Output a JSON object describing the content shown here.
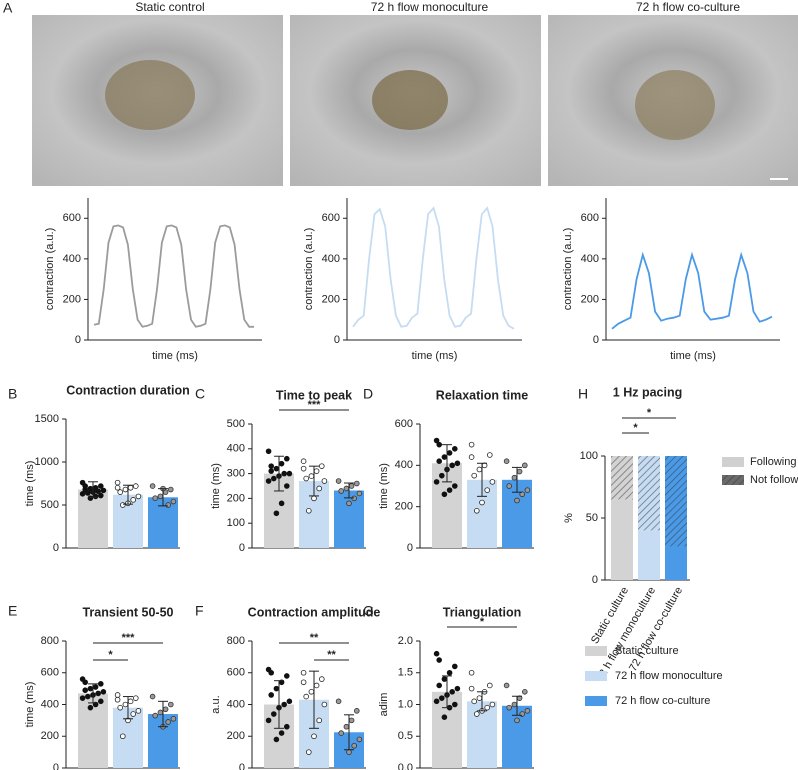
{
  "chart_data": [
    {
      "type": "trace",
      "panel": "A",
      "title": "Static control",
      "ylabel": "contraction (a.u.)",
      "xlabel": "time (ms)",
      "color": "#9b9b9b",
      "ylim": [
        0,
        700
      ],
      "yticks": [
        0,
        200,
        400,
        600
      ],
      "values": [
        75,
        80,
        250,
        480,
        560,
        565,
        555,
        470,
        250,
        100,
        65,
        70,
        80,
        250,
        480,
        560,
        565,
        555,
        470,
        250,
        100,
        65,
        70,
        80,
        250,
        480,
        560,
        565,
        555,
        470,
        250,
        100,
        65,
        65
      ]
    },
    {
      "type": "trace",
      "title": "72 h flow monoculture",
      "ylabel": "contraction (a.u.)",
      "xlabel": "time (ms)",
      "color": "#c6dcf2",
      "ylim": [
        0,
        700
      ],
      "yticks": [
        0,
        200,
        400,
        600
      ],
      "values": [
        65,
        100,
        120,
        400,
        620,
        645,
        560,
        300,
        120,
        65,
        70,
        110,
        130,
        400,
        620,
        650,
        560,
        300,
        120,
        65,
        70,
        110,
        130,
        400,
        620,
        650,
        560,
        300,
        120,
        70,
        55
      ]
    },
    {
      "type": "trace",
      "title": "72 h flow co-culture",
      "ylabel": "contraction (a.u.)",
      "xlabel": "time (ms)",
      "color": "#4a9ae8",
      "ylim": [
        0,
        700
      ],
      "yticks": [
        0,
        200,
        400,
        600
      ],
      "values": [
        55,
        80,
        95,
        110,
        300,
        420,
        330,
        140,
        95,
        105,
        110,
        120,
        300,
        420,
        330,
        140,
        100,
        105,
        110,
        120,
        300,
        420,
        330,
        140,
        90,
        100,
        115
      ]
    },
    {
      "type": "dotbar",
      "panel": "B",
      "title": "Contraction duration",
      "ylabel": "time (ms)",
      "ylim": [
        0,
        1500
      ],
      "yticks": [
        0,
        500,
        1000,
        1500
      ],
      "bars": [
        {
          "mean": 680,
          "sd": 90,
          "points": [
            760,
            720,
            700,
            690,
            680,
            670,
            660,
            650,
            640,
            630,
            610,
            600,
            580,
            720
          ]
        },
        {
          "mean": 620,
          "sd": 110,
          "points": [
            760,
            720,
            700,
            680,
            650,
            600,
            560,
            520,
            500,
            700
          ]
        },
        {
          "mean": 590,
          "sd": 100,
          "points": [
            720,
            680,
            650,
            600,
            580,
            540,
            500,
            690
          ]
        }
      ],
      "significance": []
    },
    {
      "type": "dotbar",
      "panel": "C",
      "title": "Time to peak",
      "ylabel": "time (ms)",
      "ylim": [
        0,
        500
      ],
      "yticks": [
        0,
        100,
        200,
        300,
        400,
        500
      ],
      "bars": [
        {
          "mean": 300,
          "sd": 70,
          "points": [
            390,
            360,
            340,
            320,
            310,
            300,
            300,
            290,
            280,
            270,
            250,
            180,
            140,
            330
          ]
        },
        {
          "mean": 270,
          "sd": 60,
          "points": [
            350,
            330,
            310,
            290,
            280,
            270,
            240,
            200,
            150,
            320
          ]
        },
        {
          "mean": 232,
          "sd": 30,
          "points": [
            270,
            260,
            250,
            240,
            230,
            220,
            200,
            180
          ]
        }
      ],
      "significance": [
        {
          "between": [
            0,
            2
          ],
          "label": "***"
        }
      ]
    },
    {
      "type": "dotbar",
      "panel": "D",
      "title": "Relaxation time",
      "ylabel": "time (ms)",
      "ylim": [
        0,
        600
      ],
      "yticks": [
        0,
        200,
        400,
        600
      ],
      "bars": [
        {
          "mean": 410,
          "sd": 90,
          "points": [
            520,
            480,
            460,
            440,
            420,
            410,
            400,
            380,
            350,
            320,
            300,
            280,
            260,
            500
          ]
        },
        {
          "mean": 330,
          "sd": 80,
          "points": [
            500,
            450,
            400,
            380,
            350,
            320,
            280,
            220,
            180,
            440
          ]
        },
        {
          "mean": 330,
          "sd": 60,
          "points": [
            420,
            400,
            370,
            340,
            300,
            280,
            260,
            230
          ]
        }
      ],
      "significance": []
    },
    {
      "type": "dotbar",
      "panel": "E",
      "title": "Transient 50-50",
      "ylabel": "time (ms)",
      "ylim": [
        0,
        800
      ],
      "yticks": [
        0,
        200,
        400,
        600,
        800
      ],
      "bars": [
        {
          "mean": 470,
          "sd": 60,
          "points": [
            560,
            530,
            510,
            500,
            490,
            480,
            470,
            460,
            450,
            440,
            420,
            400,
            380,
            540
          ]
        },
        {
          "mean": 380,
          "sd": 70,
          "points": [
            460,
            440,
            420,
            400,
            380,
            360,
            340,
            300,
            200,
            430
          ]
        },
        {
          "mean": 340,
          "sd": 80,
          "points": [
            450,
            400,
            370,
            350,
            330,
            310,
            290,
            260
          ]
        }
      ],
      "significance": [
        {
          "between": [
            0,
            1
          ],
          "label": "*"
        },
        {
          "between": [
            0,
            2
          ],
          "label": "***"
        }
      ]
    },
    {
      "type": "dotbar",
      "panel": "F",
      "title": "Contraction amplitude",
      "ylabel": "a.u.",
      "ylim": [
        0,
        800
      ],
      "yticks": [
        0,
        200,
        400,
        600,
        800
      ],
      "bars": [
        {
          "mean": 400,
          "sd": 150,
          "points": [
            620,
            580,
            540,
            500,
            460,
            420,
            400,
            380,
            340,
            300,
            260,
            220,
            180,
            600
          ]
        },
        {
          "mean": 430,
          "sd": 180,
          "points": [
            600,
            560,
            520,
            480,
            450,
            400,
            300,
            200,
            100,
            540
          ]
        },
        {
          "mean": 225,
          "sd": 110,
          "points": [
            420,
            360,
            300,
            260,
            220,
            180,
            140,
            100
          ]
        }
      ],
      "significance": [
        {
          "between": [
            1,
            2
          ],
          "label": "**"
        },
        {
          "between": [
            0,
            2
          ],
          "label": "**"
        }
      ]
    },
    {
      "type": "dotbar",
      "panel": "G",
      "title": "Triangulation",
      "ylabel": "adim",
      "ylim": [
        0,
        2
      ],
      "yticks": [
        {
          "value": 0,
          "label": "0.0"
        },
        {
          "value": 0.5,
          "label": "0.5"
        },
        {
          "value": 1,
          "label": "1.0"
        },
        {
          "value": 1.5,
          "label": "1.5"
        },
        {
          "value": 2,
          "label": "2.0"
        }
      ],
      "bars": [
        {
          "mean": 1.2,
          "sd": 0.25,
          "points": [
            1.8,
            1.6,
            1.5,
            1.4,
            1.3,
            1.25,
            1.2,
            1.15,
            1.1,
            1.05,
            1.0,
            0.95,
            0.8,
            1.7
          ]
        },
        {
          "mean": 1.05,
          "sd": 0.15,
          "points": [
            1.5,
            1.3,
            1.2,
            1.1,
            1.05,
            1.0,
            0.95,
            0.9,
            0.85,
            1.25
          ]
        },
        {
          "mean": 0.98,
          "sd": 0.15,
          "points": [
            1.3,
            1.2,
            1.1,
            1.0,
            0.95,
            0.9,
            0.85,
            0.75
          ]
        }
      ],
      "significance": [
        {
          "between": [
            0,
            2
          ],
          "label": "*"
        }
      ]
    },
    {
      "type": "stacked",
      "panel": "H",
      "title": "1 Hz pacing",
      "ylabel": "%",
      "ylim": [
        0,
        100
      ],
      "yticks": [
        0,
        50,
        100
      ],
      "categories": [
        "Static culture",
        "72 h flow monoculture",
        "72 h flow co-culture"
      ],
      "series": [
        {
          "name": "Following",
          "color": "#d0d0d0",
          "values": [
            65,
            40,
            27
          ]
        },
        {
          "name": "Not following",
          "color": "#6a6a6a",
          "values": [
            35,
            60,
            73
          ]
        }
      ],
      "significance": [
        {
          "between": [
            0,
            1
          ],
          "label": "*"
        },
        {
          "between": [
            0,
            2
          ],
          "label": "*"
        }
      ]
    }
  ],
  "legend": [
    {
      "name": "Static culture",
      "color": "#d3d3d3"
    },
    {
      "name": "72 h flow monoculture",
      "color": "#c6dcf2"
    },
    {
      "name": "72 h flow co-culture",
      "color": "#4a9ae8"
    }
  ]
}
